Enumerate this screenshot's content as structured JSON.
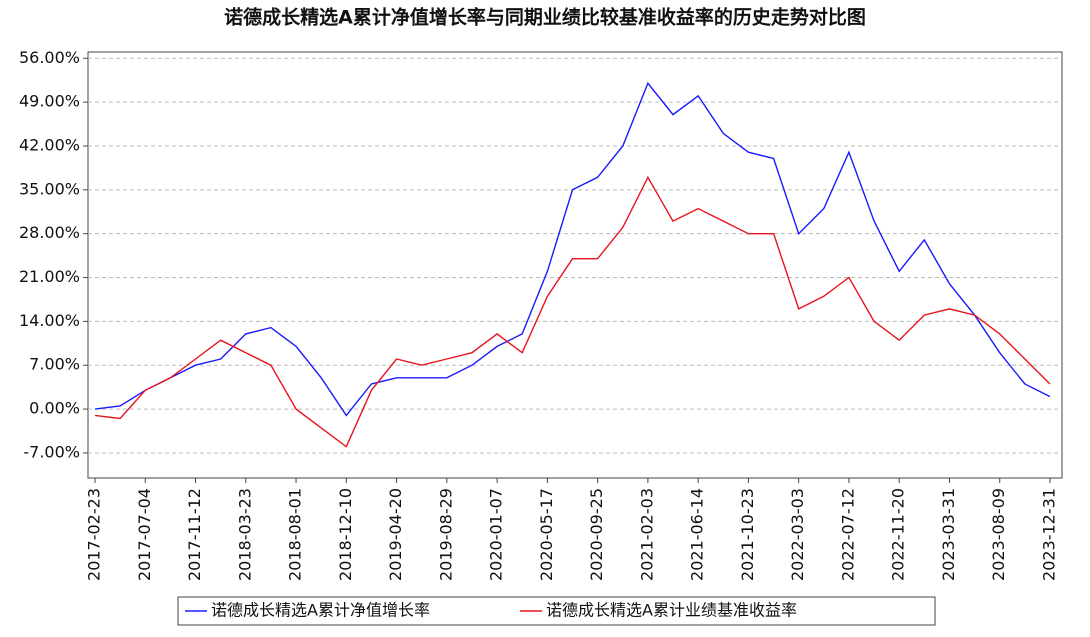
{
  "chart_data": {
    "type": "line",
    "title": "诺德成长精选A累计净值增长率与同期业绩比较基准收益率的历史走势对比图",
    "categories": [
      "2017-02-23",
      null,
      "2017-07-04",
      null,
      "2017-11-12",
      null,
      "2018-03-23",
      null,
      "2018-08-01",
      null,
      "2018-12-10",
      null,
      "2019-04-20",
      null,
      "2019-08-29",
      null,
      "2020-01-07",
      null,
      "2020-05-17",
      null,
      "2020-09-25",
      null,
      "2021-02-03",
      null,
      "2021-06-14",
      null,
      "2021-10-23",
      null,
      "2022-03-03",
      null,
      "2022-07-12",
      null,
      "2022-11-20",
      null,
      "2023-03-31",
      null,
      "2023-08-09",
      null,
      "2023-12-31"
    ],
    "series": [
      {
        "name": "诺德成长精选A累计净值增长率",
        "color": "#1a1aff",
        "values": [
          0,
          0.5,
          3,
          5,
          7,
          8,
          12,
          13,
          10,
          5,
          -1,
          4,
          5,
          5,
          5,
          7,
          10,
          12,
          22,
          35,
          37,
          42,
          52,
          47,
          50,
          44,
          41,
          40,
          28,
          32,
          41,
          30,
          22,
          27,
          20,
          15,
          9,
          4,
          2
        ]
      },
      {
        "name": "诺德成长精选A累计业绩基准收益率",
        "color": "#e8141c",
        "values": [
          -1,
          -1.5,
          3,
          5,
          8,
          11,
          9,
          7,
          0,
          -3,
          -6,
          3,
          8,
          7,
          8,
          9,
          12,
          9,
          18,
          24,
          24,
          29,
          37,
          30,
          32,
          30,
          28,
          28,
          16,
          18,
          21,
          14,
          11,
          15,
          16,
          15,
          12,
          8,
          4
        ]
      }
    ],
    "ylim": [
      -11,
      57
    ],
    "yticks": [
      {
        "value": -7,
        "label": "-7.00%"
      },
      {
        "value": 0,
        "label": "0.00%"
      },
      {
        "value": 7,
        "label": "7.00%"
      },
      {
        "value": 14,
        "label": "14.00%"
      },
      {
        "value": 21,
        "label": "21.00%"
      },
      {
        "value": 28,
        "label": "28.00%"
      },
      {
        "value": 35,
        "label": "35.00%"
      },
      {
        "value": 42,
        "label": "42.00%"
      },
      {
        "value": 49,
        "label": "49.00%"
      },
      {
        "value": 56,
        "label": "56.00%"
      }
    ],
    "grid": true
  }
}
